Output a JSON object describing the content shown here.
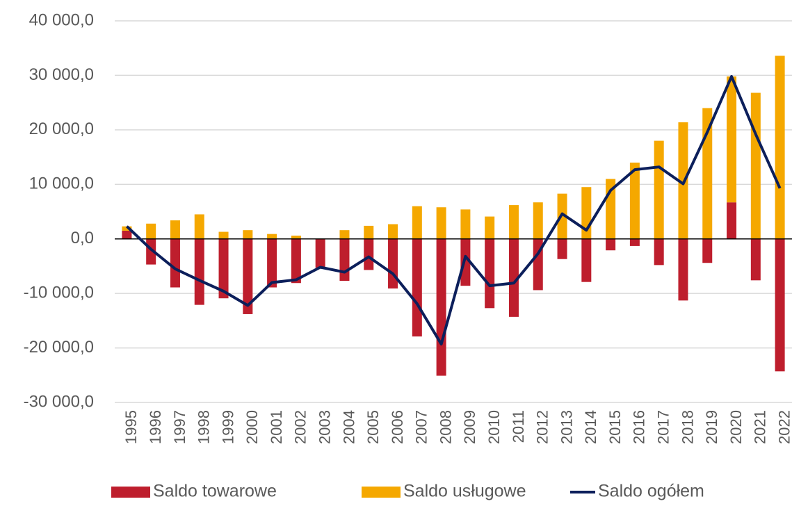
{
  "chart_data": {
    "type": "bar",
    "categories": [
      "1995",
      "1996",
      "1997",
      "1998",
      "1999",
      "2000",
      "2001",
      "2002",
      "2003",
      "2004",
      "2005",
      "2006",
      "2007",
      "2008",
      "2009",
      "2010",
      "2011",
      "2012",
      "2013",
      "2014",
      "2015",
      "2016",
      "2017",
      "2018",
      "2019",
      "2020",
      "2021",
      "2022"
    ],
    "series": [
      {
        "name": "Saldo towarowe",
        "color": "#be1e2d",
        "type": "bar",
        "values": [
          1500,
          -4700,
          -8900,
          -12100,
          -10900,
          -13800,
          -8900,
          -8100,
          -5300,
          -7700,
          -5700,
          -9100,
          -17900,
          -25100,
          -8600,
          -12700,
          -14300,
          -9400,
          -3700,
          -7900,
          -2100,
          -1300,
          -4800,
          -11300,
          -4400,
          6700,
          -7600,
          -24300
        ]
      },
      {
        "name": "Saldo usługowe",
        "color": "#f5a800",
        "type": "bar",
        "values": [
          800,
          2800,
          3400,
          4500,
          1300,
          1600,
          900,
          600,
          100,
          1600,
          2400,
          2700,
          6000,
          5800,
          5400,
          4100,
          6200,
          6700,
          8300,
          9500,
          11000,
          14000,
          18000,
          21400,
          24000,
          23100,
          26800,
          33600
        ]
      },
      {
        "name": "Saldo ogółem",
        "color": "#0c1f5b",
        "type": "line",
        "values": [
          2300,
          -1900,
          -5500,
          -7600,
          -9600,
          -12200,
          -8000,
          -7500,
          -5200,
          -6100,
          -3300,
          -6400,
          -11900,
          -19300,
          -3200,
          -8600,
          -8100,
          -2700,
          4600,
          1600,
          8900,
          12700,
          13200,
          10100,
          19600,
          29800,
          19200,
          9300
        ]
      }
    ],
    "ylim": [
      -30000,
      40000
    ],
    "yticks": [
      {
        "value": -30000,
        "label": "-30 000,0"
      },
      {
        "value": -20000,
        "label": "-20 000,0"
      },
      {
        "value": -10000,
        "label": "-10 000,0"
      },
      {
        "value": 0,
        "label": "0,0"
      },
      {
        "value": 10000,
        "label": "10 000,0"
      },
      {
        "value": 20000,
        "label": "20 000,0"
      },
      {
        "value": 30000,
        "label": "30 000,0"
      },
      {
        "value": 40000,
        "label": "40 000,0"
      }
    ],
    "grid": true,
    "legend": "bottom"
  }
}
